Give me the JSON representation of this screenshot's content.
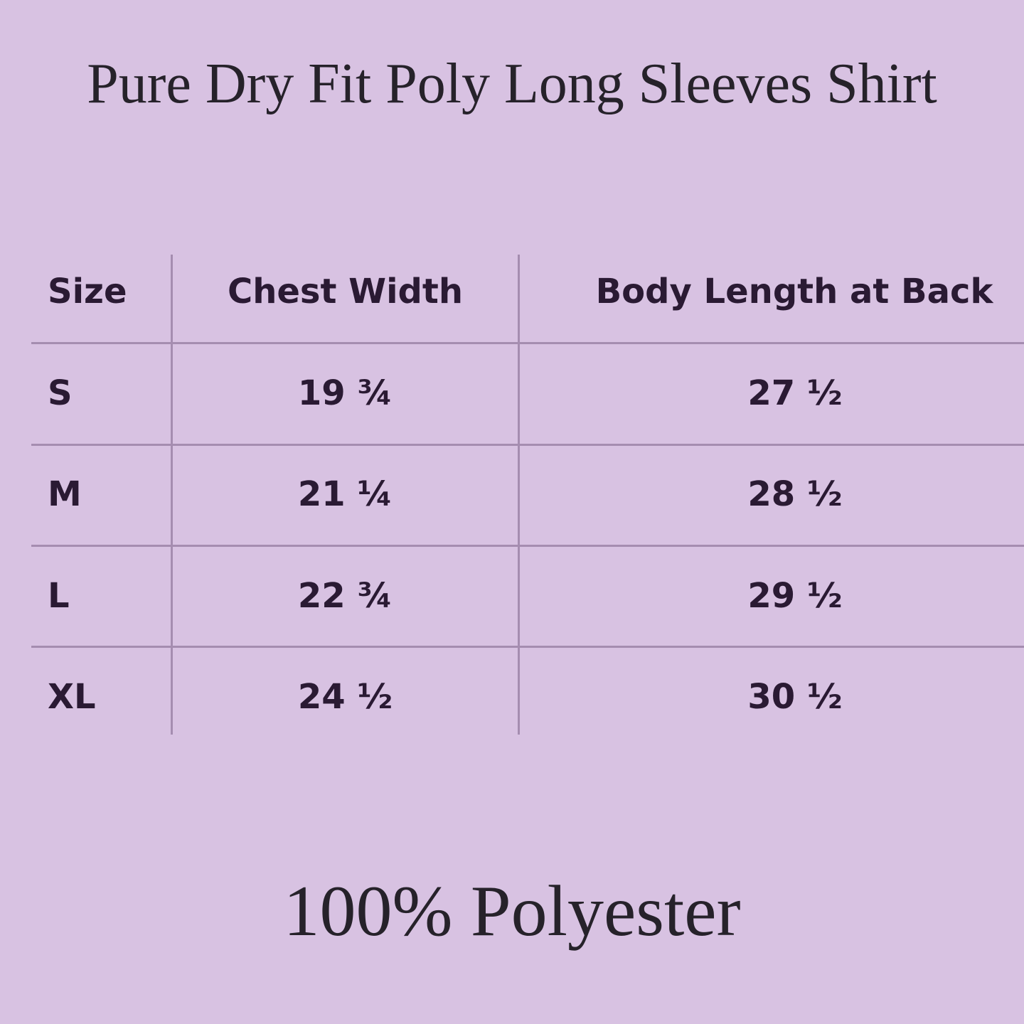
{
  "title": "Pure Dry Fit Poly Long Sleeves Shirt",
  "table": {
    "headers": [
      "Size",
      "Chest Width",
      "Body Length at Back"
    ],
    "rows": [
      [
        "S",
        "19 ¾",
        "27 ½"
      ],
      [
        "M",
        "21 ¼",
        "28 ½"
      ],
      [
        "L",
        "22 ¾",
        "29 ½"
      ],
      [
        "XL",
        "24 ½",
        "30 ½"
      ]
    ]
  },
  "footer": "100% Polyester",
  "colors": {
    "background": "#d8c2e2",
    "text": "#2a1a33",
    "rule": "#a58db0"
  }
}
